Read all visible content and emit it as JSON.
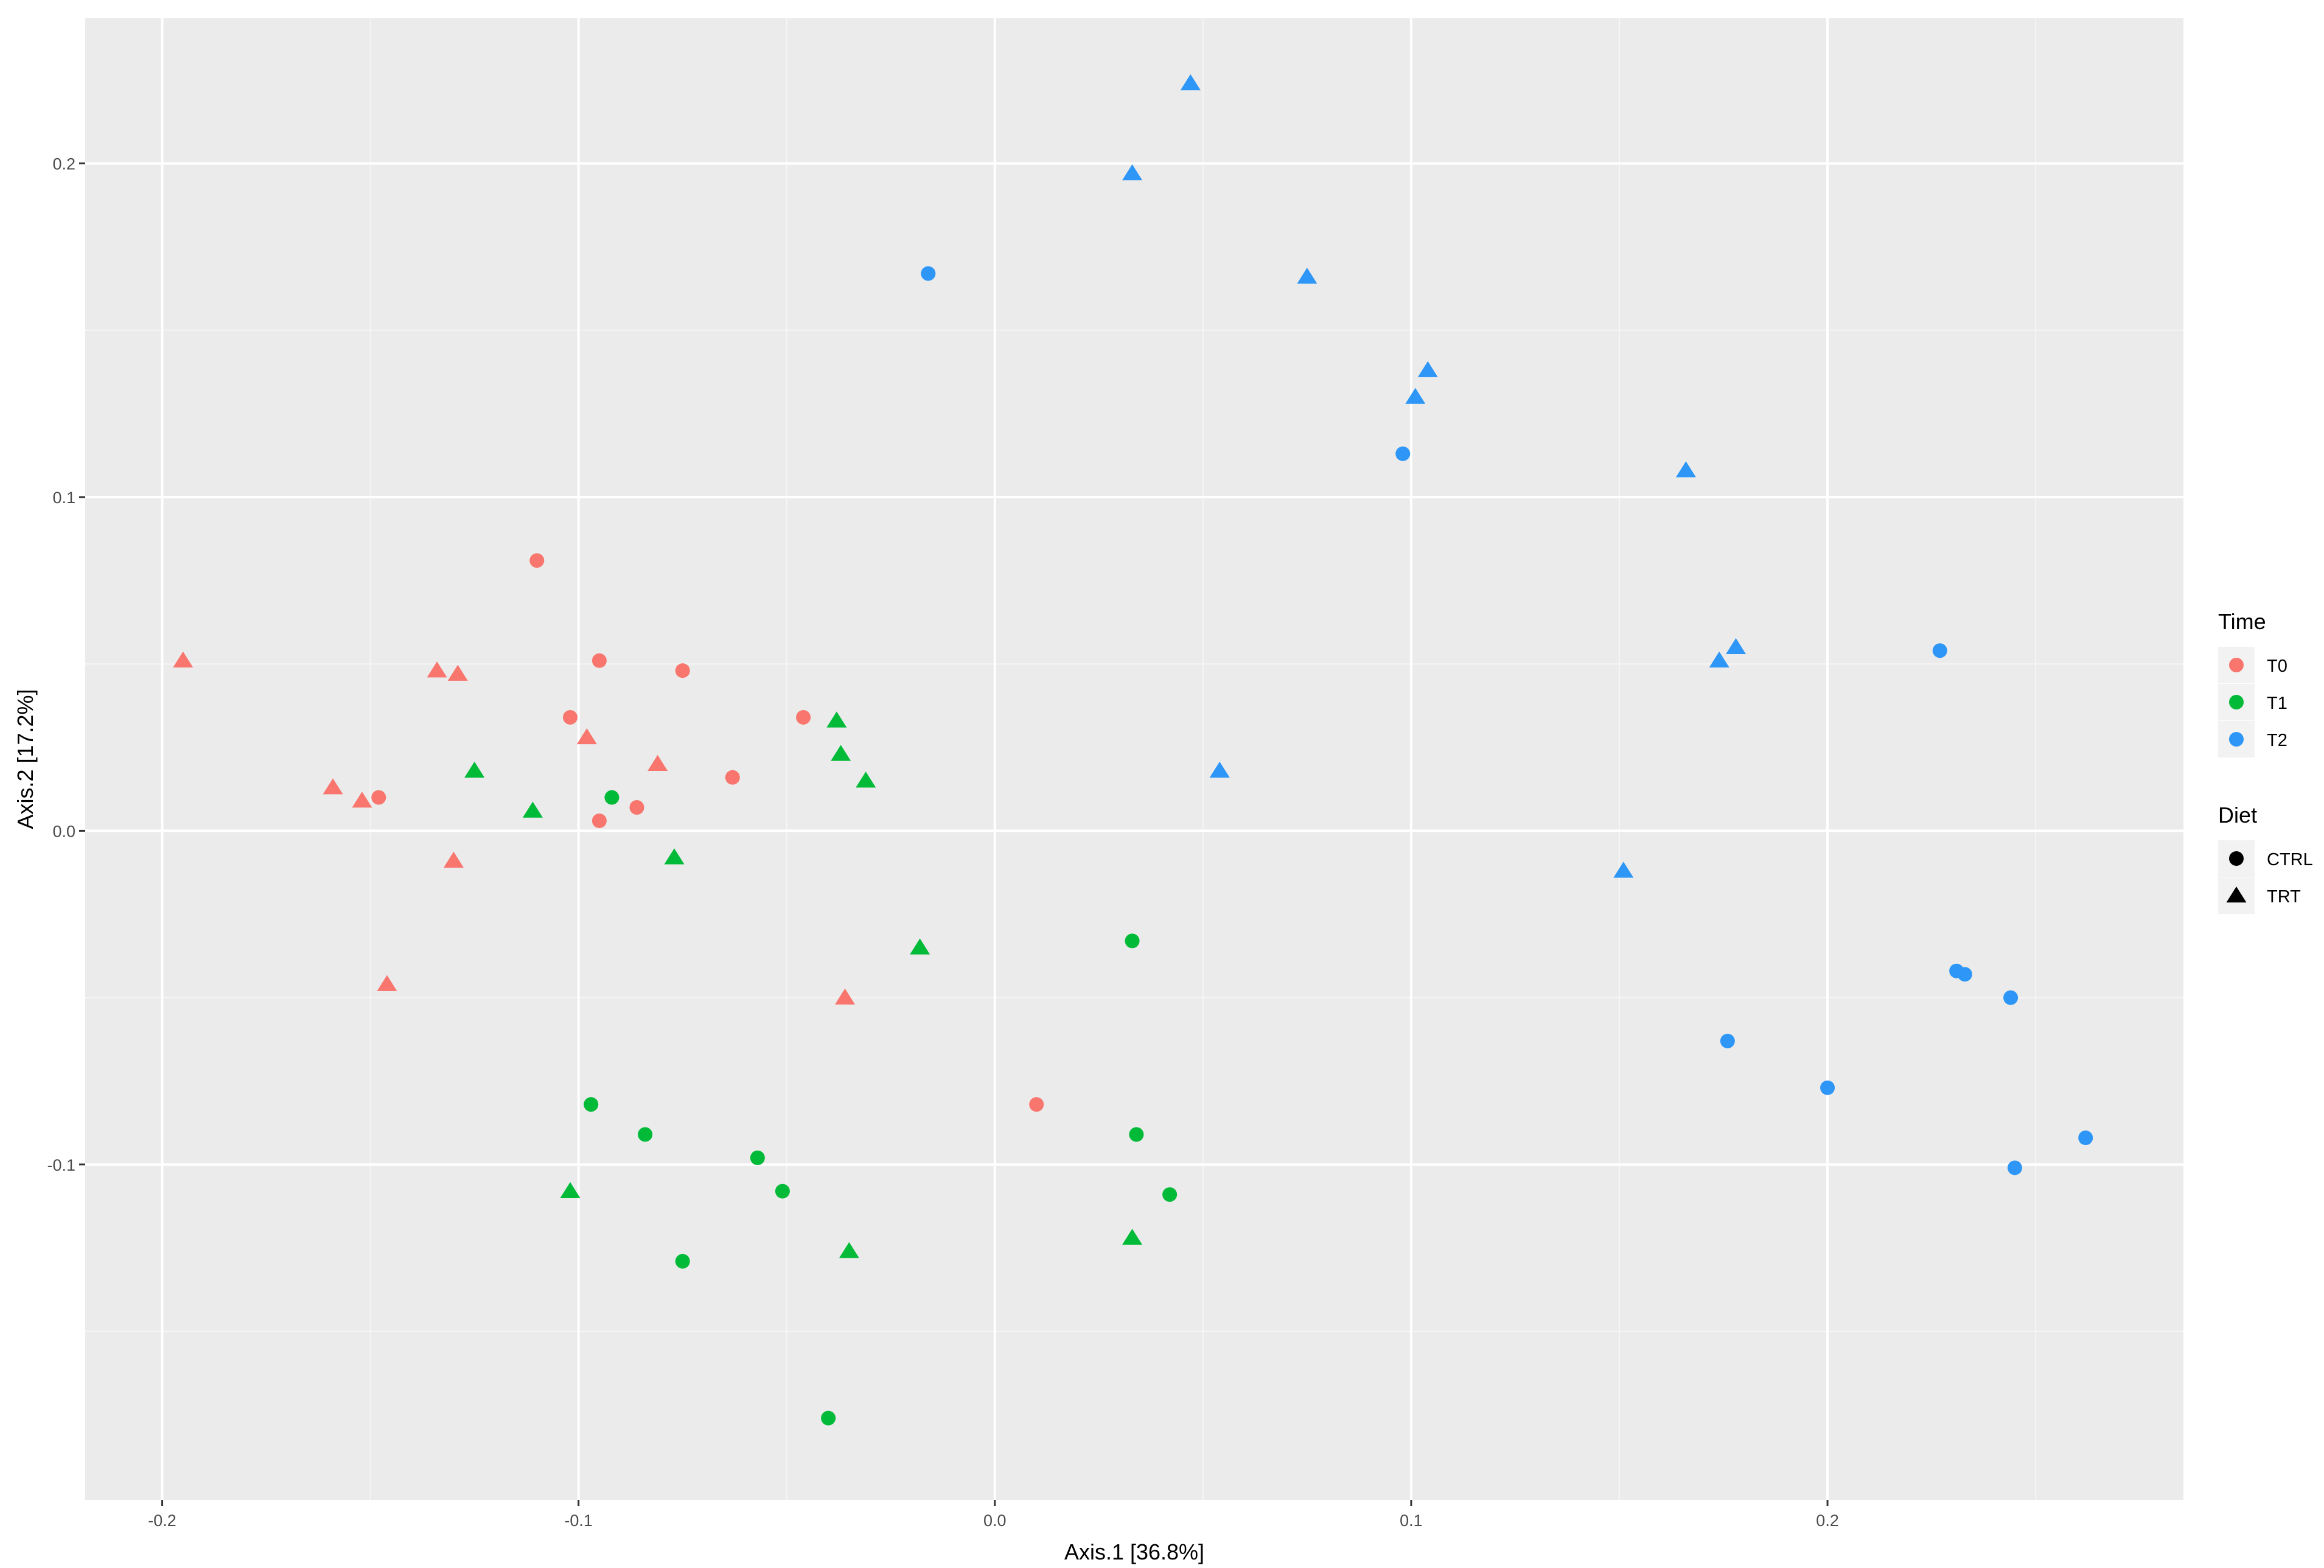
{
  "chart_data": {
    "type": "scatter",
    "xlabel": "Axis.1   [36.8%]",
    "ylabel": "Axis.2   [17.2%]",
    "xlim": [
      -0.2185,
      0.2855
    ],
    "ylim": [
      -0.2005,
      0.2435
    ],
    "x_ticks": [
      -0.2,
      -0.1,
      0.0,
      0.1,
      0.2
    ],
    "x_tick_labels": [
      "-0.2",
      "-0.1",
      "0.0",
      "0.1",
      "0.2"
    ],
    "y_ticks": [
      -0.1,
      0.0,
      0.1,
      0.2
    ],
    "y_tick_labels": [
      "-0.1",
      "0.0",
      "0.1",
      "0.2"
    ],
    "grid": true,
    "panel_background": "#ebebeb",
    "legend_position": "right",
    "legends": [
      {
        "title": "Time",
        "entries": [
          {
            "label": "T0",
            "color": "#F8766D"
          },
          {
            "label": "T1",
            "color": "#00BA38"
          },
          {
            "label": "T2",
            "color": "#2D96F7"
          }
        ]
      },
      {
        "title": "Diet",
        "entries": [
          {
            "label": "CTRL",
            "shape": "circle"
          },
          {
            "label": "TRT",
            "shape": "triangle"
          }
        ]
      }
    ],
    "series": [
      {
        "time": "T0",
        "diet": "CTRL",
        "color": "#F8766D",
        "shape": "circle",
        "points": [
          [
            -0.11,
            0.081
          ],
          [
            -0.102,
            0.034
          ],
          [
            -0.095,
            0.051
          ],
          [
            -0.095,
            0.003
          ],
          [
            -0.075,
            0.048
          ],
          [
            -0.086,
            0.007
          ],
          [
            -0.063,
            0.016
          ],
          [
            -0.046,
            0.034
          ],
          [
            -0.148,
            0.01
          ],
          [
            0.01,
            -0.082
          ]
        ]
      },
      {
        "time": "T0",
        "diet": "TRT",
        "color": "#F8766D",
        "shape": "triangle",
        "points": [
          [
            -0.195,
            0.051
          ],
          [
            -0.159,
            0.013
          ],
          [
            -0.152,
            0.009
          ],
          [
            -0.134,
            0.048
          ],
          [
            -0.129,
            0.047
          ],
          [
            -0.098,
            0.028
          ],
          [
            -0.081,
            0.02
          ],
          [
            -0.13,
            -0.009
          ],
          [
            -0.146,
            -0.046
          ],
          [
            -0.036,
            -0.05
          ]
        ]
      },
      {
        "time": "T1",
        "diet": "CTRL",
        "color": "#00BA38",
        "shape": "circle",
        "points": [
          [
            -0.092,
            0.01
          ],
          [
            -0.097,
            -0.082
          ],
          [
            -0.084,
            -0.091
          ],
          [
            -0.057,
            -0.098
          ],
          [
            -0.051,
            -0.108
          ],
          [
            -0.075,
            -0.129
          ],
          [
            0.033,
            -0.033
          ],
          [
            0.034,
            -0.091
          ],
          [
            0.042,
            -0.109
          ],
          [
            -0.04,
            -0.176
          ]
        ]
      },
      {
        "time": "T1",
        "diet": "TRT",
        "color": "#00BA38",
        "shape": "triangle",
        "points": [
          [
            -0.125,
            0.018
          ],
          [
            -0.111,
            0.006
          ],
          [
            -0.077,
            -0.008
          ],
          [
            -0.038,
            0.033
          ],
          [
            -0.037,
            0.023
          ],
          [
            -0.031,
            0.015
          ],
          [
            -0.018,
            -0.035
          ],
          [
            -0.102,
            -0.108
          ],
          [
            -0.035,
            -0.126
          ],
          [
            0.033,
            -0.122
          ]
        ]
      },
      {
        "time": "T2",
        "diet": "CTRL",
        "color": "#2D96F7",
        "shape": "circle",
        "points": [
          [
            -0.016,
            0.167
          ],
          [
            0.098,
            0.113
          ],
          [
            0.227,
            0.054
          ],
          [
            0.231,
            -0.042
          ],
          [
            0.233,
            -0.043
          ],
          [
            0.244,
            -0.05
          ],
          [
            0.176,
            -0.063
          ],
          [
            0.2,
            -0.077
          ],
          [
            0.262,
            -0.092
          ],
          [
            0.245,
            -0.101
          ]
        ]
      },
      {
        "time": "T2",
        "diet": "TRT",
        "color": "#2D96F7",
        "shape": "triangle",
        "points": [
          [
            0.047,
            0.224
          ],
          [
            0.033,
            0.197
          ],
          [
            0.075,
            0.166
          ],
          [
            0.104,
            0.138
          ],
          [
            0.101,
            0.13
          ],
          [
            0.166,
            0.108
          ],
          [
            0.178,
            0.055
          ],
          [
            0.174,
            0.051
          ],
          [
            0.054,
            0.018
          ],
          [
            0.151,
            -0.012
          ]
        ]
      }
    ]
  }
}
